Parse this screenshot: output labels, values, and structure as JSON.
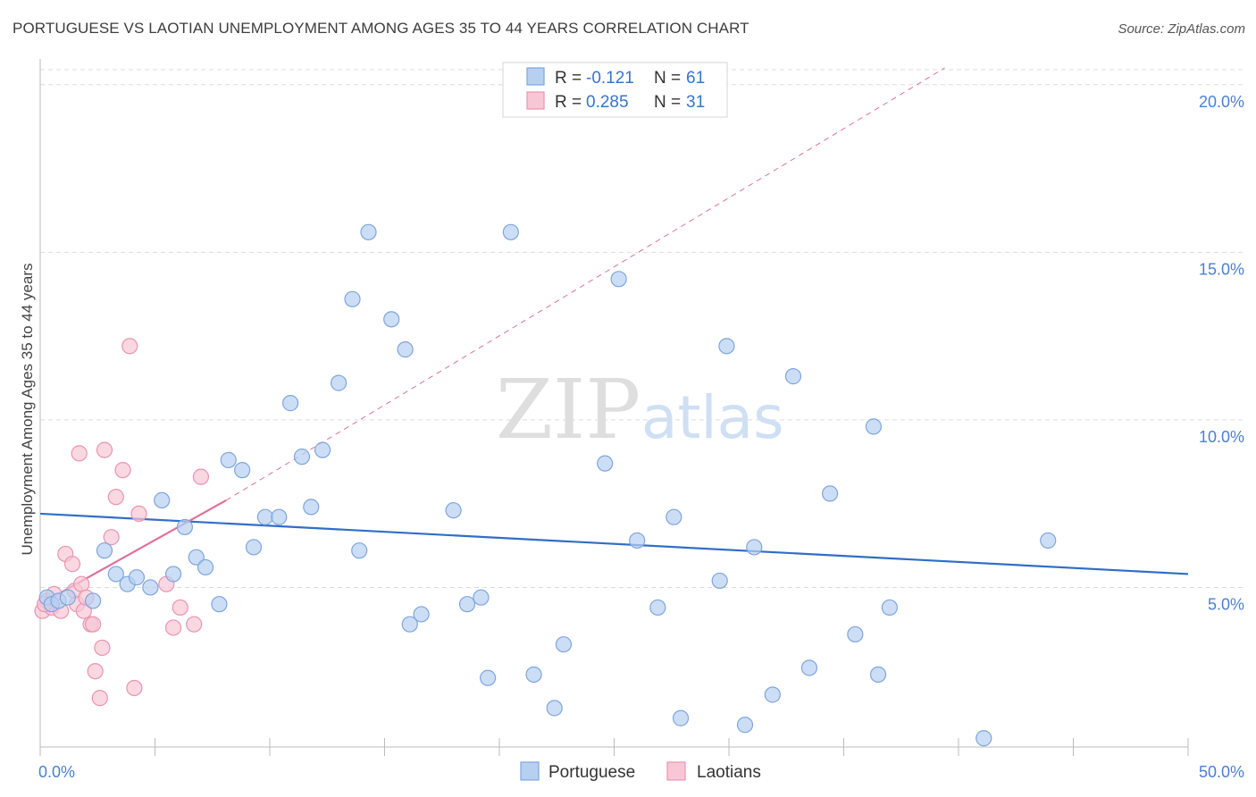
{
  "title": "PORTUGUESE VS LAOTIAN UNEMPLOYMENT AMONG AGES 35 TO 44 YEARS CORRELATION CHART",
  "source": "Source: ZipAtlas.com",
  "watermark": {
    "zip": "ZIP",
    "atlas": "atlas"
  },
  "colors": {
    "portuguese_fill": "#b7d0f2",
    "portuguese_stroke": "#7fa5dc",
    "portuguese_line": "#2f6ec8",
    "laotian_fill": "#f7c7d6",
    "laotian_stroke": "#eb93b1",
    "laotian_line": "#e0709a",
    "grid": "#dddddd",
    "tick_label": "#4a7fd1"
  },
  "legend": {
    "rows": [
      {
        "r_label": "R = ",
        "r_value": "-0.121",
        "n_label": "N = ",
        "n_value": "61"
      },
      {
        "r_label": "R = ",
        "r_value": "0.285",
        "n_label": "N = ",
        "n_value": "31"
      }
    ]
  },
  "chart_data": {
    "type": "scatter",
    "title": "PORTUGUESE VS LAOTIAN UNEMPLOYMENT AMONG AGES 35 TO 44 YEARS CORRELATION CHART",
    "xlabel": "",
    "ylabel": "Unemployment Among Ages 35 to 44 years",
    "xlim": [
      0,
      50
    ],
    "ylim": [
      0,
      20.5
    ],
    "x_tick_labels": [
      "0.0%",
      "50.0%"
    ],
    "y_ticks": [
      5,
      10,
      15,
      20
    ],
    "y_tick_labels": [
      "5.0%",
      "10.0%",
      "15.0%",
      "20.0%"
    ],
    "series": [
      {
        "name": "Portuguese",
        "points": [
          [
            0.3,
            4.7
          ],
          [
            0.5,
            4.5
          ],
          [
            0.8,
            4.6
          ],
          [
            1.2,
            4.7
          ],
          [
            2.3,
            4.6
          ],
          [
            2.8,
            6.1
          ],
          [
            3.3,
            5.4
          ],
          [
            3.8,
            5.1
          ],
          [
            4.2,
            5.3
          ],
          [
            4.8,
            5.0
          ],
          [
            5.3,
            7.6
          ],
          [
            5.8,
            5.4
          ],
          [
            6.3,
            6.8
          ],
          [
            6.8,
            5.9
          ],
          [
            7.2,
            5.6
          ],
          [
            7.8,
            4.5
          ],
          [
            8.2,
            8.8
          ],
          [
            8.8,
            8.5
          ],
          [
            9.3,
            6.2
          ],
          [
            9.8,
            7.1
          ],
          [
            10.4,
            7.1
          ],
          [
            10.9,
            10.5
          ],
          [
            11.4,
            8.9
          ],
          [
            11.8,
            7.4
          ],
          [
            12.3,
            9.1
          ],
          [
            13.0,
            11.1
          ],
          [
            13.6,
            13.6
          ],
          [
            13.9,
            6.1
          ],
          [
            14.3,
            15.6
          ],
          [
            15.3,
            13.0
          ],
          [
            15.9,
            12.1
          ],
          [
            16.1,
            3.9
          ],
          [
            16.6,
            4.2
          ],
          [
            18.0,
            7.3
          ],
          [
            18.6,
            4.5
          ],
          [
            19.2,
            4.7
          ],
          [
            19.5,
            2.3
          ],
          [
            20.5,
            15.6
          ],
          [
            21.5,
            2.4
          ],
          [
            22.4,
            1.4
          ],
          [
            22.8,
            3.3
          ],
          [
            24.6,
            8.7
          ],
          [
            25.2,
            14.2
          ],
          [
            26.0,
            6.4
          ],
          [
            26.9,
            4.4
          ],
          [
            27.6,
            7.1
          ],
          [
            27.9,
            1.1
          ],
          [
            29.6,
            5.2
          ],
          [
            29.9,
            12.2
          ],
          [
            30.7,
            0.9
          ],
          [
            31.1,
            6.2
          ],
          [
            31.9,
            1.8
          ],
          [
            32.8,
            11.3
          ],
          [
            33.5,
            2.6
          ],
          [
            34.4,
            7.8
          ],
          [
            35.5,
            3.6
          ],
          [
            36.3,
            9.8
          ],
          [
            36.5,
            2.4
          ],
          [
            37.0,
            4.4
          ],
          [
            41.1,
            0.5
          ],
          [
            43.9,
            6.4
          ]
        ]
      },
      {
        "name": "Laotians",
        "points": [
          [
            0.1,
            4.3
          ],
          [
            0.3,
            4.6
          ],
          [
            0.5,
            4.4
          ],
          [
            0.6,
            4.8
          ],
          [
            0.9,
            4.3
          ],
          [
            1.1,
            6.0
          ],
          [
            1.4,
            5.7
          ],
          [
            1.5,
            4.9
          ],
          [
            1.6,
            4.5
          ],
          [
            1.7,
            9.0
          ],
          [
            1.8,
            5.1
          ],
          [
            1.9,
            4.3
          ],
          [
            2.0,
            4.7
          ],
          [
            2.2,
            3.9
          ],
          [
            2.3,
            3.9
          ],
          [
            2.4,
            2.5
          ],
          [
            2.6,
            1.7
          ],
          [
            2.7,
            3.2
          ],
          [
            2.8,
            9.1
          ],
          [
            3.1,
            6.5
          ],
          [
            3.3,
            7.7
          ],
          [
            3.6,
            8.5
          ],
          [
            3.9,
            12.2
          ],
          [
            4.1,
            2.0
          ],
          [
            4.3,
            7.2
          ],
          [
            5.5,
            5.1
          ],
          [
            5.8,
            3.8
          ],
          [
            6.1,
            4.4
          ],
          [
            6.7,
            3.9
          ],
          [
            7.0,
            8.3
          ],
          [
            0.2,
            4.5
          ]
        ]
      }
    ],
    "trend_lines": [
      {
        "series": "Portuguese",
        "x": [
          0,
          50
        ],
        "y": [
          7.2,
          5.4
        ],
        "style": "solid"
      },
      {
        "series": "Laotians",
        "x": [
          0,
          8.1
        ],
        "y": [
          4.5,
          7.6
        ],
        "style": "solid"
      },
      {
        "series": "Laotians",
        "x": [
          8.1,
          39.4
        ],
        "y": [
          7.6,
          20.5
        ],
        "style": "dashed"
      }
    ]
  },
  "bottom_legend": [
    {
      "label": "Portuguese"
    },
    {
      "label": "Laotians"
    }
  ]
}
